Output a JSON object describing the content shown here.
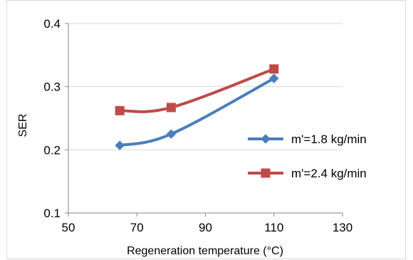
{
  "chart_data": {
    "type": "line",
    "xlabel": "Regeneration temperature (°C)",
    "ylabel": "SER",
    "xlim": [
      50,
      130
    ],
    "ylim": [
      0.1,
      0.4
    ],
    "x_ticks": [
      50,
      70,
      90,
      110,
      130
    ],
    "y_ticks": [
      0.1,
      0.2,
      0.3,
      0.4
    ],
    "x_tick_labels": [
      "50",
      "70",
      "90",
      "110",
      "130"
    ],
    "y_tick_labels": [
      "0.1",
      "0.2",
      "0.3",
      "0.4"
    ],
    "grid": "horizontal",
    "legend_position": "right",
    "series": [
      {
        "name": "m'=1.8 kg/min",
        "color": "#4a7ebb",
        "marker": "diamond",
        "x": [
          65,
          80,
          110
        ],
        "y": [
          0.207,
          0.225,
          0.313
        ]
      },
      {
        "name": "m'=2.4 kg/min",
        "color": "#be4b48",
        "marker": "square",
        "x": [
          65,
          80,
          110
        ],
        "y": [
          0.262,
          0.267,
          0.328
        ]
      }
    ]
  }
}
